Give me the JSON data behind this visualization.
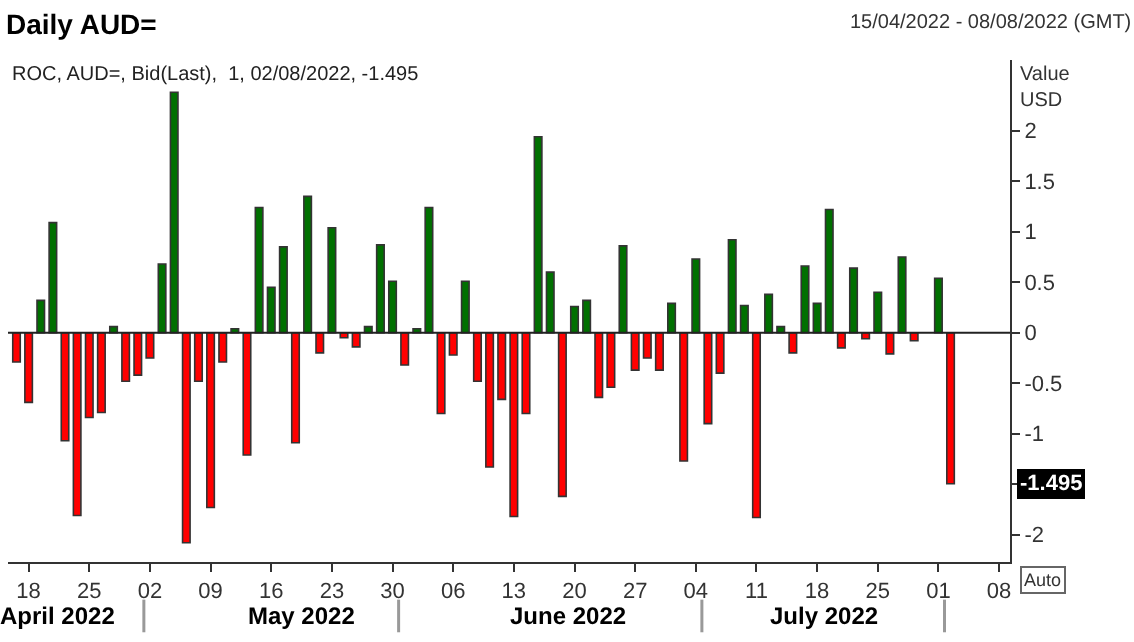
{
  "chart_data": {
    "type": "bar",
    "title": "Daily AUD=",
    "subtitle": "15/04/2022 - 08/08/2022 (GMT)",
    "ylabel": "Value\nUSD",
    "ref_lines": [
      {
        "axis": "y",
        "value": 0,
        "color": "#222222"
      }
    ],
    "categories": [
      null,
      "18",
      null,
      null,
      null,
      null,
      "25",
      null,
      null,
      null,
      null,
      "02",
      null,
      null,
      null,
      null,
      "09",
      null,
      null,
      null,
      null,
      "16",
      null,
      null,
      null,
      null,
      "23",
      null,
      null,
      null,
      null,
      "30",
      null,
      null,
      null,
      null,
      "06",
      null,
      null,
      null,
      null,
      "13",
      null,
      null,
      null,
      null,
      "20",
      null,
      null,
      null,
      null,
      "27",
      null,
      null,
      null,
      null,
      "04",
      null,
      null,
      null,
      null,
      "11",
      null,
      null,
      null,
      null,
      "18",
      null,
      null,
      null,
      null,
      "25",
      null,
      null,
      null,
      null,
      "01",
      null,
      null,
      null,
      null,
      "08"
    ],
    "series": [
      {
        "name": "ROC, AUD=, Bid(Last),  1, 02/08/2022, -1.495",
        "values": [
          -0.29,
          -0.69,
          0.32,
          1.09,
          -1.07,
          -1.81,
          -0.84,
          -0.79,
          0.06,
          -0.48,
          -0.42,
          -0.25,
          0.68,
          2.38,
          -2.08,
          -0.48,
          -1.73,
          -0.29,
          0.04,
          -1.21,
          1.24,
          0.45,
          0.85,
          -1.09,
          1.35,
          -0.2,
          1.04,
          -0.05,
          -0.14,
          0.06,
          0.87,
          0.51,
          -0.32,
          0.04,
          1.24,
          -0.8,
          -0.22,
          0.51,
          -0.48,
          -1.33,
          -0.66,
          -1.82,
          -0.8,
          1.94,
          0.6,
          -1.62,
          0.26,
          0.32,
          -0.64,
          -0.54,
          0.86,
          -0.37,
          -0.25,
          -0.37,
          0.29,
          -1.27,
          0.73,
          -0.9,
          -0.4,
          0.92,
          0.27,
          -1.83,
          0.38,
          0.06,
          -0.2,
          0.66,
          0.29,
          1.22,
          -0.15,
          0.64,
          -0.06,
          0.4,
          -0.21,
          0.75,
          -0.08,
          null,
          0.54,
          -1.495,
          null,
          null,
          null,
          null
        ],
        "colors": [
          "#ff0000",
          "#ff0000",
          "#007000",
          "#007000",
          "#ff0000",
          "#ff0000",
          "#ff0000",
          "#ff0000",
          "#007000",
          "#ff0000",
          "#ff0000",
          "#ff0000",
          "#007000",
          "#007000",
          "#ff0000",
          "#ff0000",
          "#ff0000",
          "#ff0000",
          "#007000",
          "#ff0000",
          "#007000",
          "#007000",
          "#007000",
          "#ff0000",
          "#007000",
          "#ff0000",
          "#007000",
          "#ff0000",
          "#ff0000",
          "#007000",
          "#007000",
          "#007000",
          "#ff0000",
          "#007000",
          "#007000",
          "#ff0000",
          "#ff0000",
          "#007000",
          "#ff0000",
          "#ff0000",
          "#ff0000",
          "#ff0000",
          "#ff0000",
          "#007000",
          "#007000",
          "#ff0000",
          "#007000",
          "#007000",
          "#ff0000",
          "#ff0000",
          "#007000",
          "#ff0000",
          "#ff0000",
          "#ff0000",
          "#007000",
          "#ff0000",
          "#007000",
          "#ff0000",
          "#ff0000",
          "#007000",
          "#007000",
          "#ff0000",
          "#007000",
          "#007000",
          "#ff0000",
          "#007000",
          "#007000",
          "#007000",
          "#ff0000",
          "#007000",
          "#ff0000",
          "#007000",
          "#ff0000",
          "#007000",
          "#ff0000",
          "#007000",
          "#007000",
          "#ff0000",
          "#007000",
          "#007000",
          "#007000",
          "#007000"
        ]
      }
    ],
    "ylim": [
      -2.27,
      2.7
    ],
    "yticks": [
      -2,
      {
        "value": -1.5,
        "label": null
      },
      -1,
      -0.5,
      0,
      0.5,
      1,
      1.5,
      2
    ],
    "legend": "top left",
    "annotations": [
      {
        "text": "-1.495",
        "y": -1.495
      },
      "April 2022",
      "May 2022",
      "June 2022",
      "July 2022",
      "Auto"
    ]
  }
}
